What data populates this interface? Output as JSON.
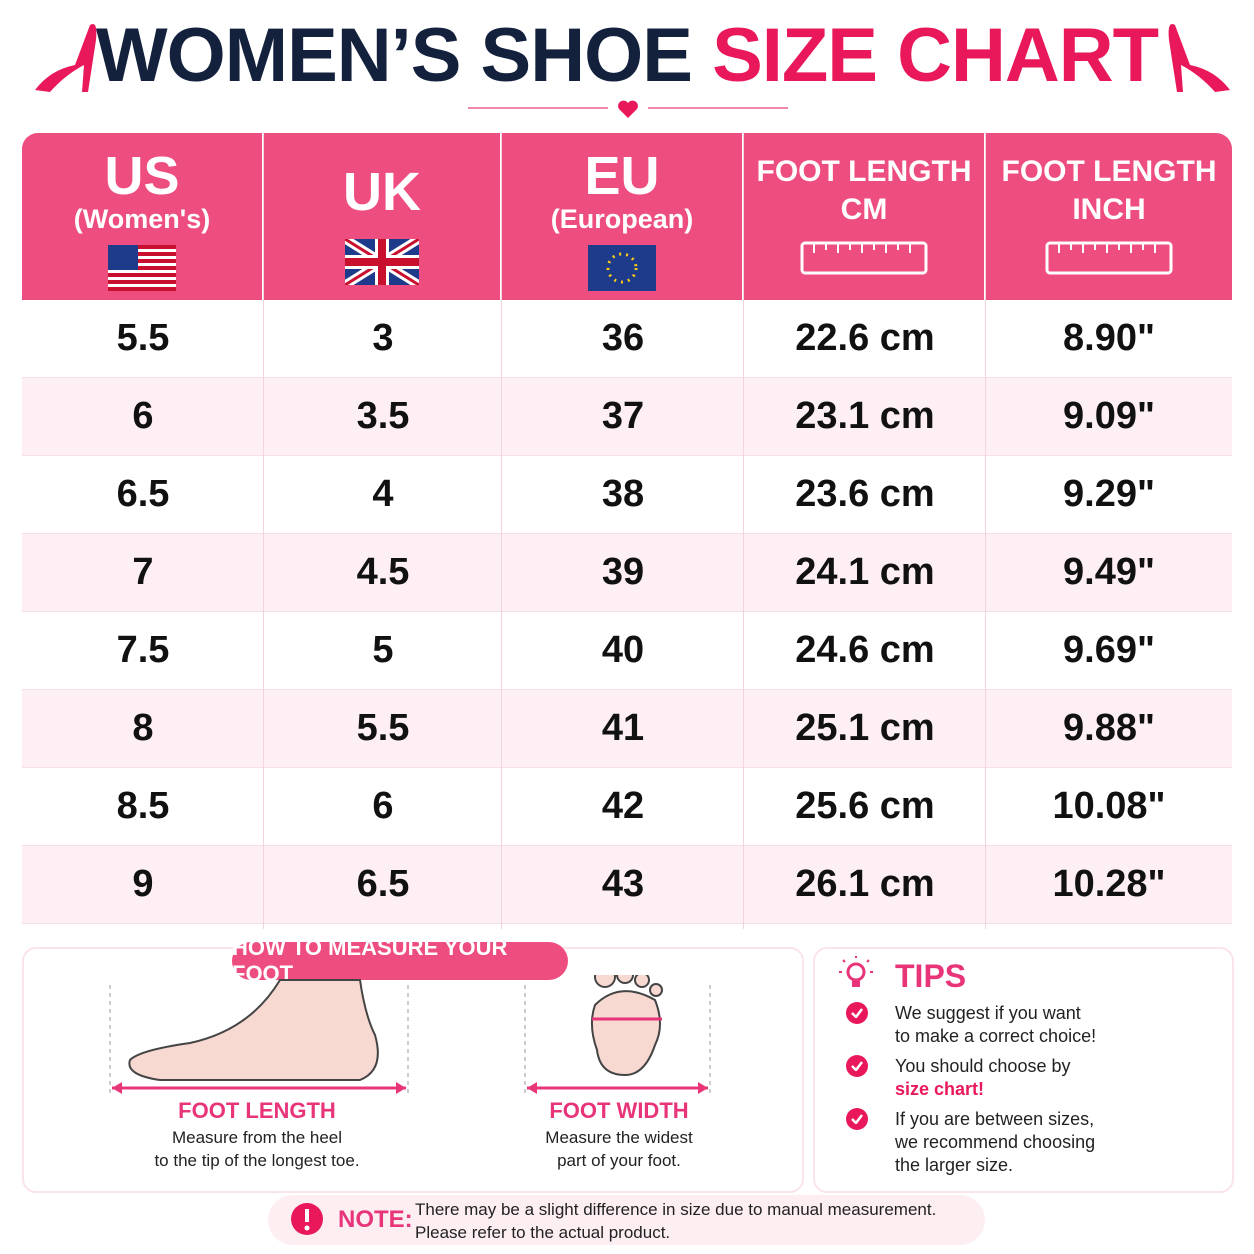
{
  "header": {
    "title_dark": "WOMEN’S SHOE",
    "title_pink": "SIZE CHART"
  },
  "table": {
    "columns": [
      {
        "label": "US",
        "sublabel": "(Women's)"
      },
      {
        "label": "UK"
      },
      {
        "label": "EU",
        "sublabel": "(European)"
      },
      {
        "label": "FOOT LENGTH",
        "sublabel": "CM"
      },
      {
        "label": "FOOT LENGTH",
        "sublabel": "INCH"
      }
    ],
    "rows": [
      [
        "5.5",
        "3",
        "36",
        "22.6 cm",
        "8.90\""
      ],
      [
        "6",
        "3.5",
        "37",
        "23.1 cm",
        "9.09\""
      ],
      [
        "6.5",
        "4",
        "38",
        "23.6 cm",
        "9.29\""
      ],
      [
        "7",
        "4.5",
        "39",
        "24.1 cm",
        "9.49\""
      ],
      [
        "7.5",
        "5",
        "40",
        "24.6 cm",
        "9.69\""
      ],
      [
        "8",
        "5.5",
        "41",
        "25.1 cm",
        "9.88\""
      ],
      [
        "8.5",
        "6",
        "42",
        "25.6 cm",
        "10.08\""
      ],
      [
        "9",
        "6.5",
        "43",
        "26.1 cm",
        "10.28\""
      ]
    ]
  },
  "measure": {
    "badge": "HOW TO MEASURE YOUR FOOT",
    "length": {
      "title": "FOOT LENGTH",
      "lines": [
        "Measure from the heel",
        "to the tip of the longest toe."
      ]
    },
    "width": {
      "title": "FOOT WIDTH",
      "lines": [
        "Measure the widest",
        "part of your foot."
      ]
    }
  },
  "tips": {
    "title": "TIPS",
    "items": [
      {
        "lines": [
          "We suggest if you want",
          "to make a correct choice!"
        ]
      },
      {
        "lines": [
          "You should choose by"
        ],
        "highlight": "size chart!"
      },
      {
        "lines": [
          "If you are between sizes,",
          "we recommend choosing",
          "the larger size."
        ]
      }
    ]
  },
  "note": {
    "label": "NOTE:",
    "lines": [
      "There may be a slight difference in size due to manual measurement.",
      "Please refer to the actual product."
    ]
  }
}
